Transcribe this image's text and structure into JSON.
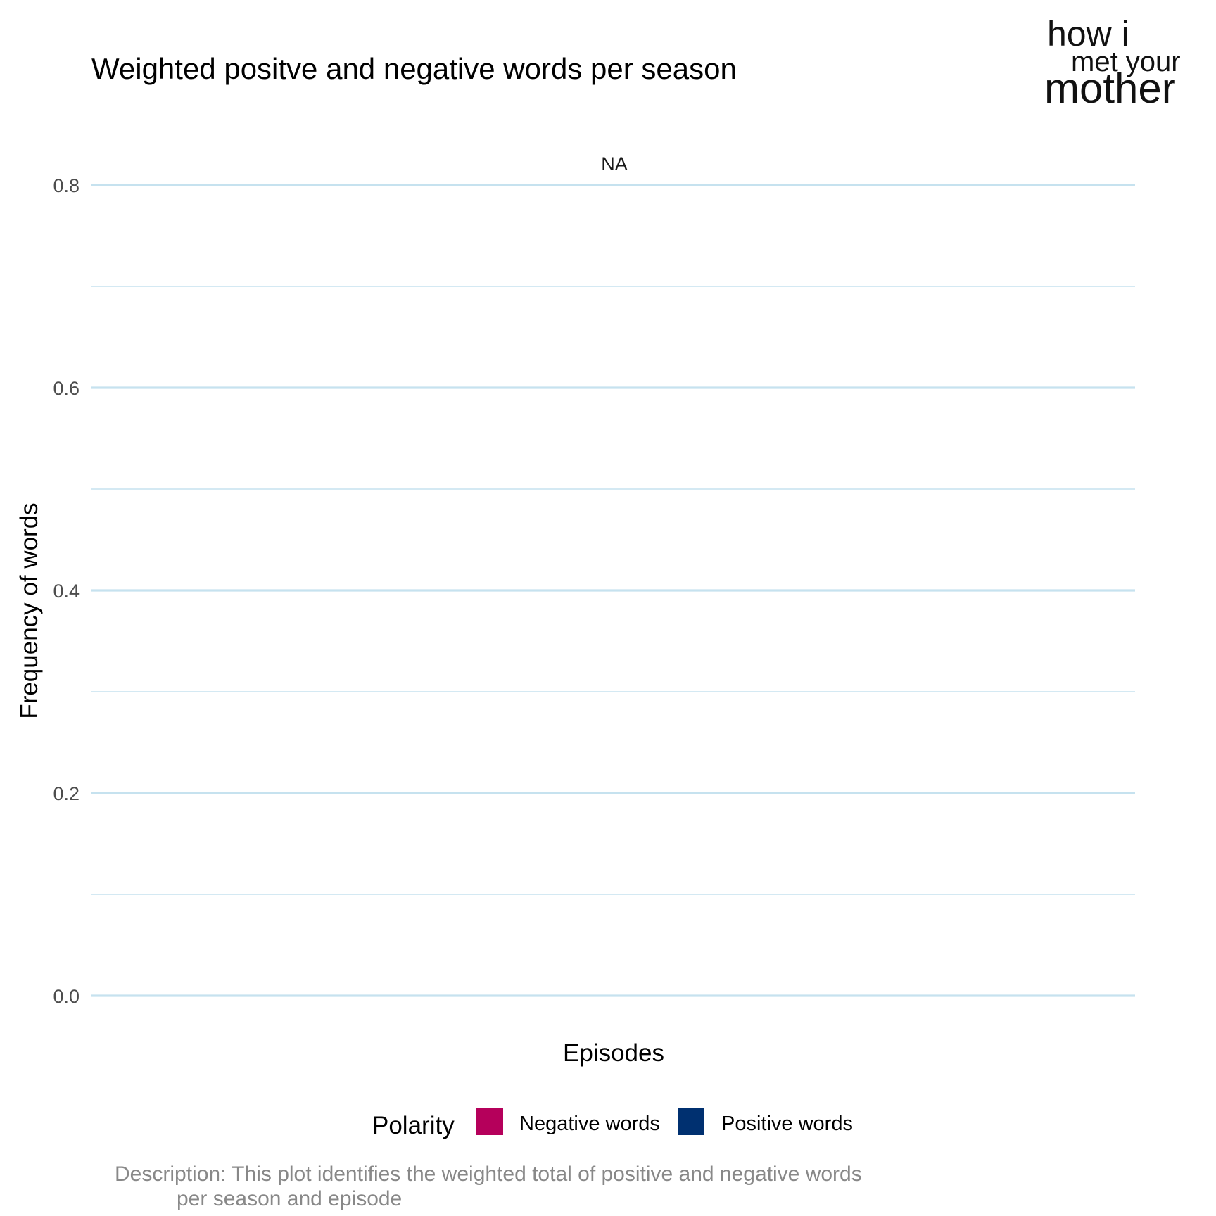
{
  "chart_data": {
    "type": "bar",
    "title": "Weighted positve and negative words per season",
    "facet_label": "NA",
    "xlabel": "Episodes",
    "ylabel": "Frequency of words",
    "ylim": [
      0,
      0.8
    ],
    "y_ticks": [
      0.0,
      0.2,
      0.4,
      0.6,
      0.8
    ],
    "y_tick_labels": [
      "0.0",
      "0.2",
      "0.4",
      "0.6",
      "0.8"
    ],
    "y_minor_ticks": [
      0.1,
      0.3,
      0.5,
      0.7
    ],
    "grid": true,
    "grid_color": "#c6e2ef",
    "categories": [],
    "series": [
      {
        "name": "Negative words",
        "color": "#b5005b",
        "values": []
      },
      {
        "name": "Positive words",
        "color": "#003070",
        "values": []
      }
    ],
    "legend": {
      "title": "Polarity",
      "position": "bottom"
    },
    "caption_lines": [
      "Description: This plot identifies the weighted total of positive and negative words",
      "per season and episode"
    ]
  },
  "logo": {
    "lines": [
      "how i",
      "met your",
      "mother"
    ]
  }
}
